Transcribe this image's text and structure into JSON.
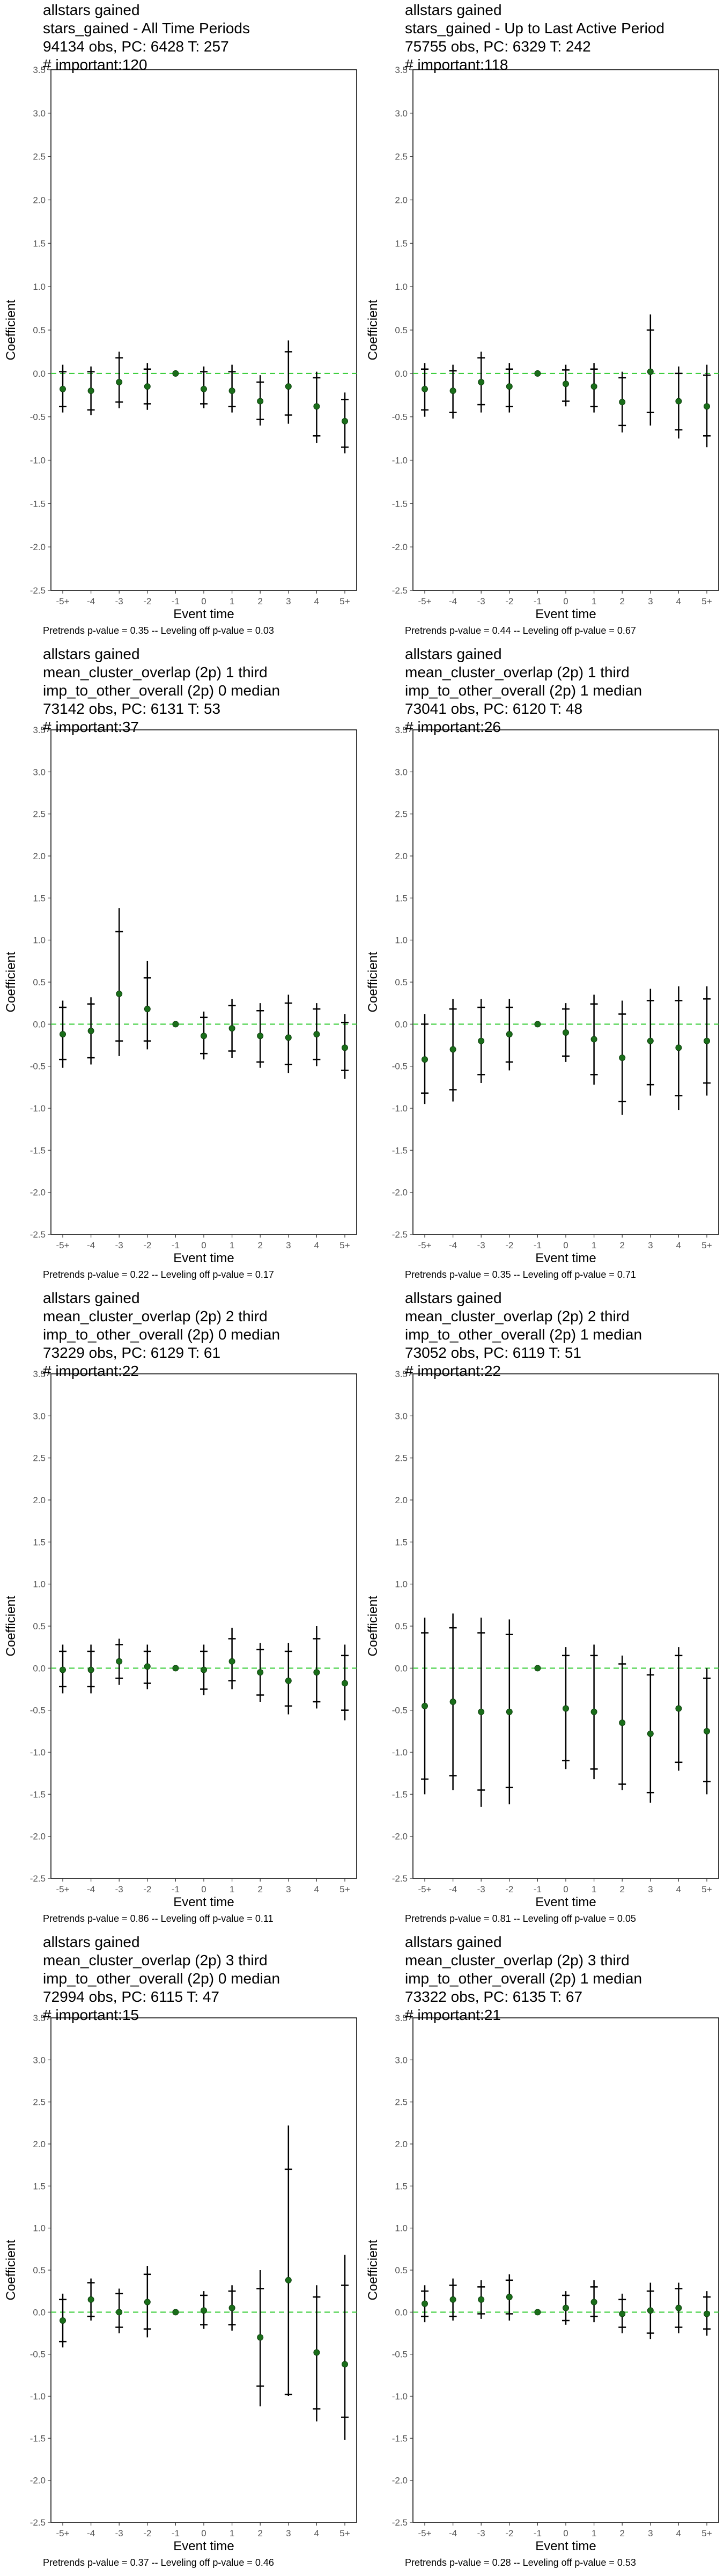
{
  "axis": {
    "xlabel": "Event time",
    "ylabel": "Coefficient"
  },
  "chart_data": [
    {
      "type": "scatter",
      "title_lines": [
        "allstars gained",
        "stars_gained - All Time Periods",
        "94134 obs, PC: 6428 T: 257",
        "# important:120"
      ],
      "footer": "Pretrends p-value = 0.35 -- Leveling off p-value = 0.03",
      "xlabel": "Event time",
      "ylabel": "Coefficient",
      "categories": [
        "-5+",
        "-4",
        "-3",
        "-2",
        "-1",
        "0",
        "1",
        "2",
        "3",
        "4",
        "5+"
      ],
      "yticks": [
        "-2.5",
        "-2.0",
        "-1.5",
        "-1.0",
        "-0.5",
        "0.0",
        "0.5",
        "1.0",
        "1.5",
        "2.0",
        "2.5",
        "3.0",
        "3.5"
      ],
      "ylim": [
        -2.5,
        3.5
      ],
      "estimates": [
        -0.18,
        -0.2,
        -0.1,
        -0.15,
        0.0,
        -0.18,
        -0.2,
        -0.32,
        -0.15,
        -0.38,
        -0.55
      ],
      "ci95_low": [
        -0.45,
        -0.48,
        -0.4,
        -0.42,
        0.0,
        -0.4,
        -0.45,
        -0.6,
        -0.58,
        -0.8,
        -0.92
      ],
      "ci95_high": [
        0.1,
        0.08,
        0.25,
        0.12,
        0.0,
        0.08,
        0.1,
        -0.02,
        0.38,
        0.02,
        -0.22
      ],
      "ci90_low": [
        -0.38,
        -0.42,
        -0.33,
        -0.35,
        0.0,
        -0.35,
        -0.38,
        -0.53,
        -0.48,
        -0.72,
        -0.85
      ],
      "ci90_high": [
        0.02,
        0.02,
        0.18,
        0.05,
        0.0,
        0.02,
        0.02,
        -0.1,
        0.25,
        -0.05,
        -0.3
      ]
    },
    {
      "type": "scatter",
      "title_lines": [
        "allstars gained",
        "stars_gained - Up to Last Active Period",
        "75755 obs, PC: 6329 T: 242",
        "# important:118"
      ],
      "footer": "Pretrends p-value = 0.44 -- Leveling off p-value = 0.67",
      "xlabel": "Event time",
      "ylabel": "Coefficient",
      "categories": [
        "-5+",
        "-4",
        "-3",
        "-2",
        "-1",
        "0",
        "1",
        "2",
        "3",
        "4",
        "5+"
      ],
      "yticks": [
        "-2.5",
        "-2.0",
        "-1.5",
        "-1.0",
        "-0.5",
        "0.0",
        "0.5",
        "1.0",
        "1.5",
        "2.0",
        "2.5",
        "3.0",
        "3.5"
      ],
      "ylim": [
        -2.5,
        3.5
      ],
      "estimates": [
        -0.18,
        -0.2,
        -0.1,
        -0.15,
        0.0,
        -0.12,
        -0.15,
        -0.33,
        0.02,
        -0.32,
        -0.38
      ],
      "ci95_low": [
        -0.5,
        -0.52,
        -0.45,
        -0.45,
        0.0,
        -0.38,
        -0.45,
        -0.68,
        -0.6,
        -0.75,
        -0.85
      ],
      "ci95_high": [
        0.12,
        0.1,
        0.25,
        0.12,
        0.0,
        0.1,
        0.12,
        0.02,
        0.68,
        0.08,
        0.1
      ],
      "ci90_low": [
        -0.42,
        -0.45,
        -0.36,
        -0.38,
        0.0,
        -0.32,
        -0.38,
        -0.6,
        -0.45,
        -0.65,
        -0.72
      ],
      "ci90_high": [
        0.05,
        0.03,
        0.18,
        0.05,
        0.0,
        0.04,
        0.05,
        -0.05,
        0.5,
        0.0,
        -0.02
      ]
    },
    {
      "type": "scatter",
      "title_lines": [
        "allstars gained",
        "mean_cluster_overlap (2p) 1 third",
        "imp_to_other_overall (2p) 0 median",
        "73142 obs, PC: 6131 T: 53",
        "# important:37"
      ],
      "footer": "Pretrends p-value = 0.22 -- Leveling off p-value = 0.17",
      "xlabel": "Event time",
      "ylabel": "Coefficient",
      "categories": [
        "-5+",
        "-4",
        "-3",
        "-2",
        "-1",
        "0",
        "1",
        "2",
        "3",
        "4",
        "5+"
      ],
      "yticks": [
        "-2.5",
        "-2.0",
        "-1.5",
        "-1.0",
        "-0.5",
        "0.0",
        "0.5",
        "1.0",
        "1.5",
        "2.0",
        "2.5",
        "3.0",
        "3.5"
      ],
      "ylim": [
        -2.5,
        3.5
      ],
      "estimates": [
        -0.12,
        -0.08,
        0.36,
        0.18,
        0.0,
        -0.14,
        -0.05,
        -0.14,
        -0.16,
        -0.12,
        -0.28
      ],
      "ci95_low": [
        -0.52,
        -0.48,
        -0.38,
        -0.3,
        0.0,
        -0.42,
        -0.4,
        -0.52,
        -0.58,
        -0.5,
        -0.65
      ],
      "ci95_high": [
        0.28,
        0.32,
        1.38,
        0.75,
        0.0,
        0.15,
        0.3,
        0.25,
        0.35,
        0.25,
        0.12
      ],
      "ci90_low": [
        -0.42,
        -0.4,
        -0.2,
        -0.2,
        0.0,
        -0.35,
        -0.32,
        -0.45,
        -0.48,
        -0.42,
        -0.55
      ],
      "ci90_high": [
        0.2,
        0.24,
        1.1,
        0.55,
        0.0,
        0.08,
        0.22,
        0.16,
        0.25,
        0.18,
        0.02
      ]
    },
    {
      "type": "scatter",
      "title_lines": [
        "allstars gained",
        "mean_cluster_overlap (2p) 1 third",
        "imp_to_other_overall (2p) 1 median",
        "73041 obs, PC: 6120 T: 48",
        "# important:26"
      ],
      "footer": "Pretrends p-value = 0.35 -- Leveling off p-value = 0.71",
      "xlabel": "Event time",
      "ylabel": "Coefficient",
      "categories": [
        "-5+",
        "-4",
        "-3",
        "-2",
        "-1",
        "0",
        "1",
        "2",
        "3",
        "4",
        "5+"
      ],
      "yticks": [
        "-2.5",
        "-2.0",
        "-1.5",
        "-1.0",
        "-0.5",
        "0.0",
        "0.5",
        "1.0",
        "1.5",
        "2.0",
        "2.5",
        "3.0",
        "3.5"
      ],
      "ylim": [
        -2.5,
        3.5
      ],
      "estimates": [
        -0.42,
        -0.3,
        -0.2,
        -0.12,
        0.0,
        -0.1,
        -0.18,
        -0.4,
        -0.2,
        -0.28,
        -0.2
      ],
      "ci95_low": [
        -0.95,
        -0.92,
        -0.7,
        -0.55,
        0.0,
        -0.45,
        -0.72,
        -1.08,
        -0.85,
        -1.02,
        -0.85
      ],
      "ci95_high": [
        0.12,
        0.3,
        0.3,
        0.3,
        0.0,
        0.25,
        0.35,
        0.28,
        0.42,
        0.45,
        0.45
      ],
      "ci90_low": [
        -0.82,
        -0.78,
        -0.6,
        -0.45,
        0.0,
        -0.38,
        -0.6,
        -0.92,
        -0.72,
        -0.85,
        -0.7
      ],
      "ci90_high": [
        0.0,
        0.18,
        0.2,
        0.2,
        0.0,
        0.18,
        0.24,
        0.12,
        0.28,
        0.28,
        0.3
      ]
    },
    {
      "type": "scatter",
      "title_lines": [
        "allstars gained",
        "mean_cluster_overlap (2p) 2 third",
        "imp_to_other_overall (2p) 0 median",
        "73229 obs, PC: 6129 T: 61",
        "# important:22"
      ],
      "footer": "Pretrends p-value = 0.86 -- Leveling off p-value = 0.11",
      "xlabel": "Event time",
      "ylabel": "Coefficient",
      "categories": [
        "-5+",
        "-4",
        "-3",
        "-2",
        "-1",
        "0",
        "1",
        "2",
        "3",
        "4",
        "5+"
      ],
      "yticks": [
        "-2.5",
        "-2.0",
        "-1.5",
        "-1.0",
        "-0.5",
        "0.0",
        "0.5",
        "1.0",
        "1.5",
        "2.0",
        "2.5",
        "3.0",
        "3.5"
      ],
      "ylim": [
        -2.5,
        3.5
      ],
      "estimates": [
        -0.02,
        -0.02,
        0.08,
        0.02,
        0.0,
        -0.02,
        0.08,
        -0.05,
        -0.15,
        -0.05,
        -0.18
      ],
      "ci95_low": [
        -0.3,
        -0.3,
        -0.2,
        -0.25,
        0.0,
        -0.32,
        -0.25,
        -0.4,
        -0.55,
        -0.48,
        -0.62
      ],
      "ci95_high": [
        0.28,
        0.28,
        0.35,
        0.28,
        0.0,
        0.28,
        0.48,
        0.3,
        0.3,
        0.5,
        0.28
      ],
      "ci90_low": [
        -0.22,
        -0.22,
        -0.12,
        -0.18,
        0.0,
        -0.25,
        -0.15,
        -0.32,
        -0.45,
        -0.4,
        -0.5
      ],
      "ci90_high": [
        0.2,
        0.2,
        0.28,
        0.2,
        0.0,
        0.2,
        0.35,
        0.22,
        0.2,
        0.35,
        0.15
      ]
    },
    {
      "type": "scatter",
      "title_lines": [
        "allstars gained",
        "mean_cluster_overlap (2p) 2 third",
        "imp_to_other_overall (2p) 1 median",
        "73052 obs, PC: 6119 T: 51",
        "# important:22"
      ],
      "footer": "Pretrends p-value = 0.81 -- Leveling off p-value = 0.05",
      "xlabel": "Event time",
      "ylabel": "Coefficient",
      "categories": [
        "-5+",
        "-4",
        "-3",
        "-2",
        "-1",
        "0",
        "1",
        "2",
        "3",
        "4",
        "5+"
      ],
      "yticks": [
        "-2.5",
        "-2.0",
        "-1.5",
        "-1.0",
        "-0.5",
        "0.0",
        "0.5",
        "1.0",
        "1.5",
        "2.0",
        "2.5",
        "3.0",
        "3.5"
      ],
      "ylim": [
        -2.5,
        3.5
      ],
      "estimates": [
        -0.45,
        -0.4,
        -0.52,
        -0.52,
        0.0,
        -0.48,
        -0.52,
        -0.65,
        -0.78,
        -0.48,
        -0.75
      ],
      "ci95_low": [
        -1.5,
        -1.45,
        -1.65,
        -1.62,
        0.0,
        -1.2,
        -1.32,
        -1.45,
        -1.6,
        -1.22,
        -1.5
      ],
      "ci95_high": [
        0.6,
        0.65,
        0.6,
        0.58,
        0.0,
        0.25,
        0.28,
        0.15,
        0.0,
        0.25,
        0.0
      ],
      "ci90_low": [
        -1.32,
        -1.28,
        -1.45,
        -1.42,
        0.0,
        -1.1,
        -1.2,
        -1.38,
        -1.48,
        -1.12,
        -1.35
      ],
      "ci90_high": [
        0.42,
        0.48,
        0.42,
        0.4,
        0.0,
        0.15,
        0.15,
        0.05,
        -0.08,
        0.15,
        -0.12
      ]
    },
    {
      "type": "scatter",
      "title_lines": [
        "allstars gained",
        "mean_cluster_overlap (2p) 3 third",
        "imp_to_other_overall (2p) 0 median",
        "72994 obs, PC: 6115 T: 47",
        "# important:15"
      ],
      "footer": "Pretrends p-value = 0.37 -- Leveling off p-value = 0.46",
      "xlabel": "Event time",
      "ylabel": "Coefficient",
      "categories": [
        "-5+",
        "-4",
        "-3",
        "-2",
        "-1",
        "0",
        "1",
        "2",
        "3",
        "4",
        "5+"
      ],
      "yticks": [
        "-2.5",
        "-2.0",
        "-1.5",
        "-1.0",
        "-0.5",
        "0.0",
        "0.5",
        "1.0",
        "1.5",
        "2.0",
        "2.5",
        "3.0",
        "3.5"
      ],
      "ylim": [
        -2.5,
        3.5
      ],
      "estimates": [
        -0.1,
        0.15,
        0.0,
        0.12,
        0.0,
        0.02,
        0.05,
        -0.3,
        0.38,
        -0.48,
        -0.62
      ],
      "ci95_low": [
        -0.42,
        -0.1,
        -0.25,
        -0.3,
        0.0,
        -0.2,
        -0.22,
        -1.12,
        -1.0,
        -1.3,
        -1.52
      ],
      "ci95_high": [
        0.22,
        0.4,
        0.28,
        0.55,
        0.0,
        0.25,
        0.32,
        0.5,
        2.22,
        0.32,
        0.68
      ],
      "ci90_low": [
        -0.35,
        -0.05,
        -0.18,
        -0.2,
        0.0,
        -0.15,
        -0.15,
        -0.88,
        -0.98,
        -1.15,
        -1.25
      ],
      "ci90_high": [
        0.15,
        0.35,
        0.22,
        0.45,
        0.0,
        0.2,
        0.25,
        0.28,
        1.7,
        0.18,
        0.32
      ]
    },
    {
      "type": "scatter",
      "title_lines": [
        "allstars gained",
        "mean_cluster_overlap (2p) 3 third",
        "imp_to_other_overall (2p) 1 median",
        "73322 obs, PC: 6135 T: 67",
        "# important:21"
      ],
      "footer": "Pretrends p-value = 0.28 -- Leveling off p-value = 0.53",
      "xlabel": "Event time",
      "ylabel": "Coefficient",
      "categories": [
        "-5+",
        "-4",
        "-3",
        "-2",
        "-1",
        "0",
        "1",
        "2",
        "3",
        "4",
        "5+"
      ],
      "yticks": [
        "-2.5",
        "-2.0",
        "-1.5",
        "-1.0",
        "-0.5",
        "0.0",
        "0.5",
        "1.0",
        "1.5",
        "2.0",
        "2.5",
        "3.0",
        "3.5"
      ],
      "ylim": [
        -2.5,
        3.5
      ],
      "estimates": [
        0.1,
        0.15,
        0.15,
        0.18,
        0.0,
        0.05,
        0.12,
        -0.02,
        0.02,
        0.05,
        -0.02
      ],
      "ci95_low": [
        -0.12,
        -0.1,
        -0.08,
        -0.1,
        0.0,
        -0.15,
        -0.12,
        -0.25,
        -0.32,
        -0.25,
        -0.28
      ],
      "ci95_high": [
        0.32,
        0.4,
        0.38,
        0.45,
        0.0,
        0.25,
        0.38,
        0.22,
        0.35,
        0.35,
        0.25
      ],
      "ci90_low": [
        -0.05,
        -0.05,
        -0.02,
        -0.02,
        0.0,
        -0.1,
        -0.05,
        -0.18,
        -0.25,
        -0.18,
        -0.2
      ],
      "ci90_high": [
        0.25,
        0.32,
        0.3,
        0.38,
        0.0,
        0.2,
        0.3,
        0.15,
        0.25,
        0.28,
        0.18
      ]
    }
  ],
  "colors": {
    "zero_line": "#33cc33",
    "point": "#1a6e1a",
    "error_bar": "#000000",
    "frame": "#000000",
    "tick_label": "#555555"
  }
}
